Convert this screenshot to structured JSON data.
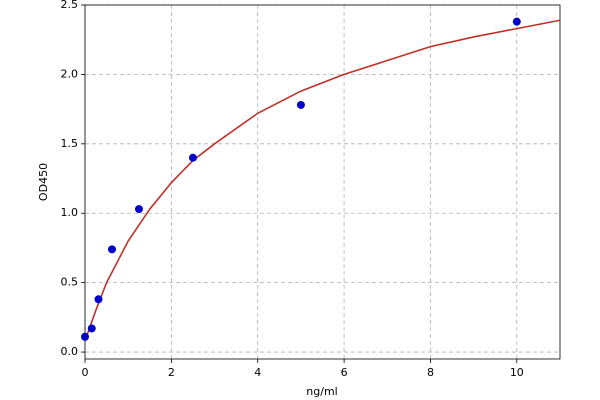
{
  "chart_data": {
    "type": "scatter",
    "x_label": "ng/ml",
    "y_label": "OD450",
    "xlim": [
      0,
      11
    ],
    "ylim": [
      -0.05,
      2.5
    ],
    "xticks": [
      0,
      2,
      4,
      6,
      8,
      10
    ],
    "yticks": [
      {
        "value": 0,
        "label": "0.0"
      },
      {
        "value": 0.5,
        "label": "0.5"
      },
      {
        "value": 1,
        "label": "1.0"
      },
      {
        "value": 1.5,
        "label": "1.5"
      },
      {
        "value": 2,
        "label": "2.0"
      },
      {
        "value": 2.5,
        "label": "2.5"
      }
    ],
    "grid": true,
    "series": [
      {
        "type": "line",
        "color": "#c0302a",
        "x": [
          0,
          0.25,
          0.5,
          1,
          1.5,
          2,
          2.5,
          3,
          4,
          5,
          6,
          7,
          8,
          9,
          10,
          11
        ],
        "values": [
          0.08,
          0.3,
          0.5,
          0.8,
          1.03,
          1.22,
          1.38,
          1.5,
          1.72,
          1.88,
          2.0,
          2.1,
          2.2,
          2.27,
          2.33,
          2.39
        ]
      },
      {
        "type": "scatter",
        "color": "#0000cc",
        "x": [
          0,
          0.156,
          0.3125,
          0.625,
          1.25,
          2.5,
          5,
          10
        ],
        "values": [
          0.11,
          0.17,
          0.38,
          0.74,
          1.03,
          1.4,
          1.78,
          2.38
        ]
      }
    ]
  }
}
